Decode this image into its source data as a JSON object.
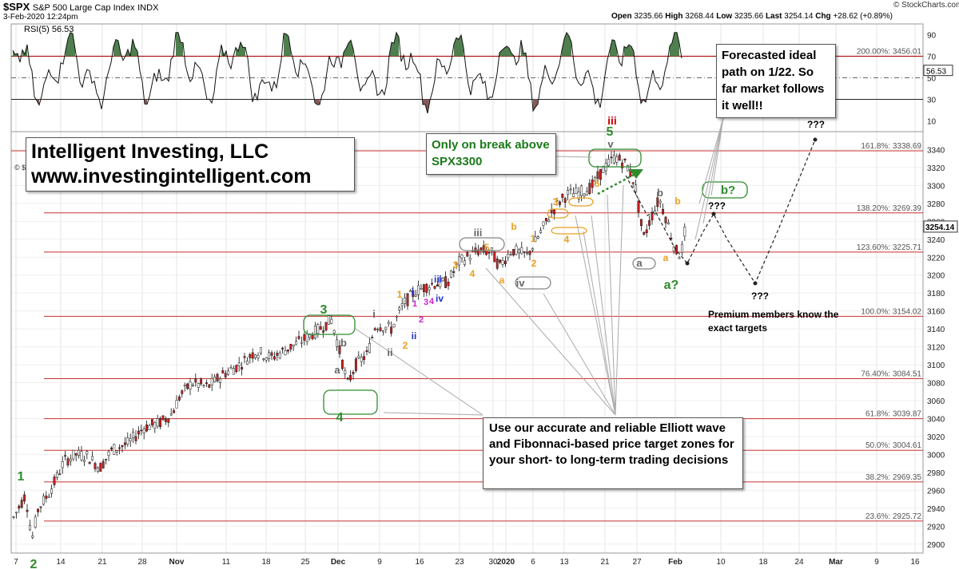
{
  "header": {
    "symbol": "$SPX",
    "name": "S&P 500 Large Cap Index",
    "exchange": "INDX",
    "date": "3-Feb-2020 12:24pm",
    "brand": "© StockCharts.com",
    "open_label": "Open",
    "open": "3235.66",
    "high_label": "High",
    "high": "3268.44",
    "low_label": "Low",
    "low": "3235.66",
    "last_label": "Last",
    "last": "3254.14",
    "chg_label": "Chg",
    "chg": "+28.62 (+0.89%)"
  },
  "rsi": {
    "label": "RSI(5) 56.53",
    "current": "56.53",
    "ticks": [
      "90",
      "70",
      "50",
      "30",
      "10"
    ],
    "upper": 70,
    "lower": 30
  },
  "chart_data": {
    "type": "candlestick",
    "ylim": [
      2890,
      3360
    ],
    "price_ticks": [
      3340,
      3320,
      3300,
      3280,
      3260,
      3240,
      3220,
      3200,
      3180,
      3160,
      3140,
      3120,
      3100,
      3080,
      3060,
      3040,
      3020,
      3000,
      2980,
      2960,
      2940,
      2920,
      2900
    ],
    "x_ticks": [
      "7",
      "14",
      "21",
      "28",
      "Nov",
      "11",
      "18",
      "25",
      "Dec",
      "9",
      "16",
      "23",
      "30",
      "2020",
      "6",
      "13",
      "21",
      "27",
      "Feb",
      "10",
      "18",
      "24",
      "Mar",
      "9",
      "16"
    ],
    "last_price": "3254.14",
    "fib_levels": [
      {
        "label": "200.00%: 3456.01",
        "value": 3456.01
      },
      {
        "label": "161.8%: 3338.69",
        "value": 3338.69
      },
      {
        "label": "138.20%: 3269.39",
        "value": 3269.39
      },
      {
        "label": "123.60%: 3225.71",
        "value": 3225.71
      },
      {
        "label": "100.0%: 3154.02",
        "value": 3154.02
      },
      {
        "label": "76.40%: 3084.51",
        "value": 3084.51
      },
      {
        "label": "61.8%: 3039.87",
        "value": 3039.87
      },
      {
        "label": "50.0%: 3004.61",
        "value": 3004.61
      },
      {
        "label": "38.2%: 2969.35",
        "value": 2969.35
      },
      {
        "label": "23.6%: 2925.72",
        "value": 2925.72
      }
    ],
    "wave_labels": [
      {
        "text": "1",
        "color": "#2e8b2e",
        "size": 16
      },
      {
        "text": "2",
        "color": "#2e8b2e",
        "size": 16
      },
      {
        "text": "3",
        "color": "#2e8b2e",
        "size": 16
      },
      {
        "text": "4",
        "color": "#2e8b2e",
        "size": 16
      },
      {
        "text": "5",
        "color": "#2e8b2e",
        "size": 16
      },
      {
        "text": "a?",
        "color": "#2e8b2e",
        "size": 16
      },
      {
        "text": "b?",
        "color": "#2e8b2e",
        "size": 15
      },
      {
        "text": "a",
        "color": "#666",
        "size": 13
      },
      {
        "text": "b",
        "color": "#666",
        "size": 13
      },
      {
        "text": "i",
        "color": "#666",
        "size": 13
      },
      {
        "text": "ii",
        "color": "#666",
        "size": 13
      },
      {
        "text": "iii",
        "color": "#666",
        "size": 13
      },
      {
        "text": "iv",
        "color": "#666",
        "size": 13
      },
      {
        "text": "v",
        "color": "#666",
        "size": 13
      },
      {
        "text": "a",
        "color": "#666",
        "size": 13
      },
      {
        "text": "b",
        "color": "#666",
        "size": 13
      },
      {
        "text": "iii",
        "color": "#cc0000",
        "size": 14
      },
      {
        "text": "1",
        "color": "#e8a020",
        "size": 12
      },
      {
        "text": "2",
        "color": "#e8a020",
        "size": 12
      },
      {
        "text": "3",
        "color": "#e8a020",
        "size": 12
      },
      {
        "text": "4",
        "color": "#e8a020",
        "size": 12
      },
      {
        "text": "5",
        "color": "#e8a020",
        "size": 12
      },
      {
        "text": "a",
        "color": "#e8a020",
        "size": 12
      },
      {
        "text": "b",
        "color": "#e8a020",
        "size": 12
      },
      {
        "text": "1",
        "color": "#e8a020",
        "size": 12
      },
      {
        "text": "2",
        "color": "#e8a020",
        "size": 12
      },
      {
        "text": "3",
        "color": "#e8a020",
        "size": 12
      },
      {
        "text": "4",
        "color": "#e8a020",
        "size": 12
      },
      {
        "text": "5",
        "color": "#e8a020",
        "size": 12
      },
      {
        "text": "a",
        "color": "#e8a020",
        "size": 12
      },
      {
        "text": "b",
        "color": "#e8a020",
        "size": 12
      },
      {
        "text": "i",
        "color": "#2233cc",
        "size": 12
      },
      {
        "text": "ii",
        "color": "#2233cc",
        "size": 12
      },
      {
        "text": "iii",
        "color": "#2233cc",
        "size": 12
      },
      {
        "text": "iv",
        "color": "#2233cc",
        "size": 12
      },
      {
        "text": "1",
        "color": "#cc22cc",
        "size": 11
      },
      {
        "text": "2",
        "color": "#cc22cc",
        "size": 11
      },
      {
        "text": "3",
        "color": "#cc22cc",
        "size": 11
      },
      {
        "text": "4",
        "color": "#cc22cc",
        "size": 11
      }
    ],
    "question_marks": [
      "???",
      "???",
      "???"
    ]
  },
  "annotations": {
    "company": "Intelligent Investing, LLC",
    "website": "www.investingintelligent.com",
    "break_note": "Only on break above SPX3300",
    "forecast_note": "Forecasted ideal path on 1/22. So far market follows it well!!",
    "premium_note": "Premium members know the exact targets",
    "promo": "Use our accurate and reliable Elliott wave and Fibonnaci-based price target zones for your short- to long-term trading decisions"
  },
  "colors": {
    "fib_line": "#c83232",
    "rsi_fill": "#4f7f4f",
    "rsi_fill_low": "#8a5a5a",
    "up_candle": "#ffffff",
    "down_candle": "#cc2222",
    "green_label": "#2e8b2e",
    "orange_label": "#e8a020"
  }
}
